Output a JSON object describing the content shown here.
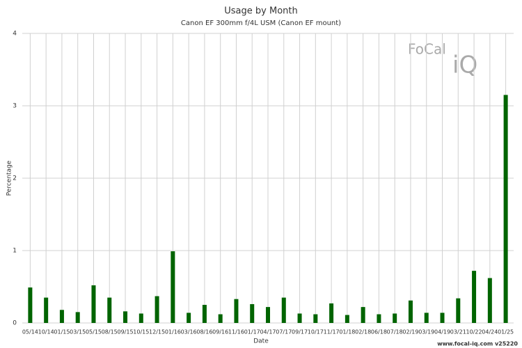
{
  "chart_data": {
    "type": "bar",
    "title": "Usage by Month",
    "subtitle": "Canon EF 300mm f/4L USM (Canon EF mount)",
    "x_label": "Date",
    "y_label": "Percentage",
    "categories": [
      "05/14",
      "10/14",
      "01/15",
      "03/15",
      "05/15",
      "08/15",
      "09/15",
      "10/15",
      "12/15",
      "01/16",
      "03/16",
      "08/16",
      "09/16",
      "11/16",
      "01/17",
      "04/17",
      "07/17",
      "09/17",
      "10/17",
      "11/17",
      "01/18",
      "02/18",
      "06/18",
      "07/18",
      "02/19",
      "03/19",
      "04/19",
      "03/21",
      "10/22",
      "04/24",
      "01/25"
    ],
    "values": [
      0.49,
      0.35,
      0.18,
      0.15,
      0.52,
      0.35,
      0.16,
      0.13,
      0.37,
      0.99,
      0.14,
      0.25,
      0.12,
      0.33,
      0.26,
      0.22,
      0.35,
      0.13,
      0.12,
      0.27,
      0.11,
      0.22,
      0.12,
      0.13,
      0.31,
      0.14,
      0.14,
      0.34,
      0.72,
      0.62,
      3.15
    ],
    "color": "#006400",
    "ylim": [
      0,
      4
    ],
    "yticks": [
      0,
      1,
      2,
      3,
      4
    ],
    "grid": true,
    "logo": {
      "top": "FoCal",
      "bottom": "iQ"
    },
    "footer": "www.focal-iq.com  v25220"
  }
}
